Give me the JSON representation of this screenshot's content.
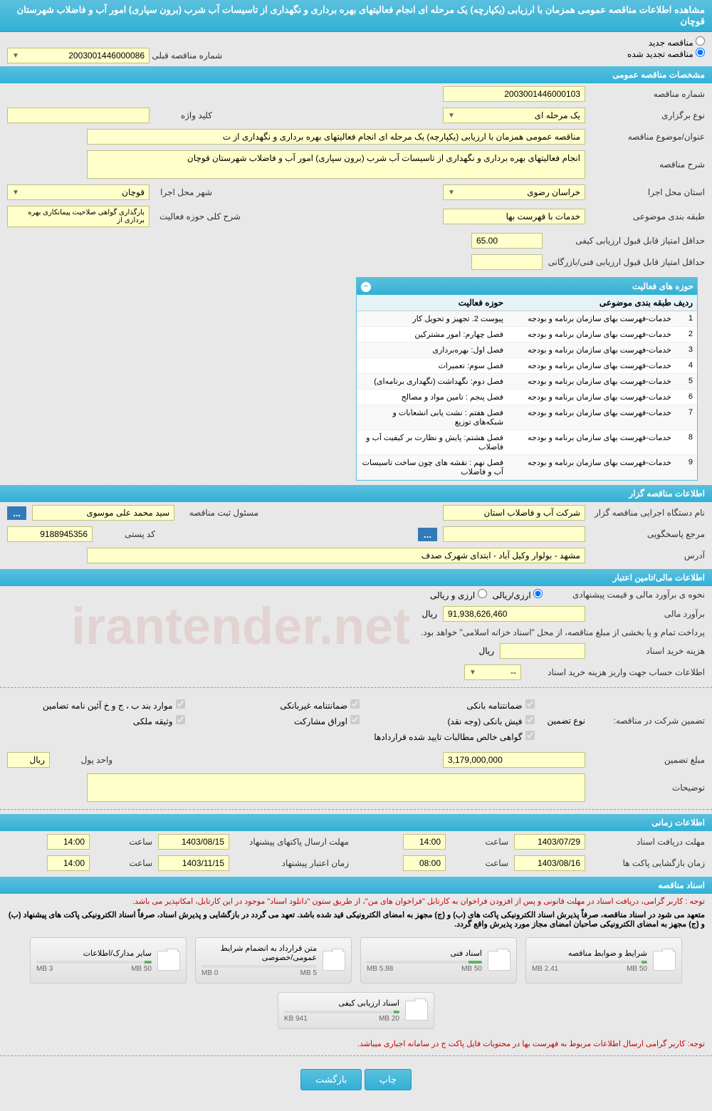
{
  "header": {
    "title": "مشاهده اطلاعات مناقصه عمومی همزمان با ارزیابی (یکپارچه) یک مرحله ای انجام فعالیتهای بهره برداری و نگهداری از تاسیسات آب شرب (برون سپاری) امور آب و فاضلاب شهرستان قوچان"
  },
  "radio": {
    "new_tender": "مناقصه جدید",
    "renewed": "مناقصه تجدید شده",
    "prev_num_label": "شماره مناقصه قبلی",
    "prev_num": "2003001446000086"
  },
  "general": {
    "section_title": "مشخصات مناقصه عمومی",
    "tender_num_label": "شماره مناقصه",
    "tender_num": "2003001446000103",
    "type_label": "نوع برگزاری",
    "type": "یک مرحله ای",
    "keyword_label": "کلید واژه",
    "keyword": "",
    "subject_label": "عنوان/موضوع مناقصه",
    "subject": "مناقصه عمومی همزمان با ارزیابی (یکپارچه) یک مرحله ای انجام فعالیتهای بهره برداری و نگهداری از ت",
    "desc_label": "شرح مناقصه",
    "desc": "انجام فعالیتهای بهره برداری و نگهداری از تاسیسات آب شرب (برون سپاری) امور آب و فاضلاب شهرستان قوچان",
    "province_label": "استان محل اجرا",
    "province": "خراسان رضوی",
    "city_label": "شهر محل اجرا",
    "city": "قوچان",
    "category_label": "طبقه بندی موضوعی",
    "category": "خدمات با فهرست بها",
    "activity_desc_label": "شرح کلی حوزه فعالیت",
    "activity_desc": "بارگذاری گواهی صلاحیت پیمانکاری بهره برداری از",
    "min_quality_label": "حداقل امتیاز قابل قبول ارزیابی کیفی",
    "min_quality": "65.00",
    "min_tech_label": "حداقل امتیاز قابل قبول ارزیابی فنی/بازرگانی",
    "min_tech": ""
  },
  "activities": {
    "title": "حوزه های فعالیت",
    "col_idx": "ردیف",
    "col_cat": "طبقه بندی موضوعی",
    "col_act": "حوزه فعالیت",
    "rows": [
      {
        "idx": "1",
        "cat": "خدمات-فهرست بهای سازمان برنامه و بودجه",
        "act": "پیوست 2. تجهیز و تحویل کار"
      },
      {
        "idx": "2",
        "cat": "خدمات-فهرست بهای سازمان برنامه و بودجه",
        "act": "فصل چهارم: امور مشترکین"
      },
      {
        "idx": "3",
        "cat": "خدمات-فهرست بهای سازمان برنامه و بودجه",
        "act": "فصل اول: بهره‌برداری"
      },
      {
        "idx": "4",
        "cat": "خدمات-فهرست بهای سازمان برنامه و بودجه",
        "act": "فصل سوم: تعمیرات"
      },
      {
        "idx": "5",
        "cat": "خدمات-فهرست بهای سازمان برنامه و بودجه",
        "act": "فصل دوم: نگهداشت (نگهداری برنامه‌ای)"
      },
      {
        "idx": "6",
        "cat": "خدمات-فهرست بهای سازمان برنامه و بودجه",
        "act": "فصل پنجم : تامین مواد و مصالح"
      },
      {
        "idx": "7",
        "cat": "خدمات-فهرست بهای سازمان برنامه و بودجه",
        "act": "فصل هفتم : نشت یابی انشعابات و شبکه‌های توزیع"
      },
      {
        "idx": "8",
        "cat": "خدمات-فهرست بهای سازمان برنامه و بودجه",
        "act": "فصل هشتم: پایش و نظارت بر کیفیت آب و فاضلاب"
      },
      {
        "idx": "9",
        "cat": "خدمات-فهرست بهای سازمان برنامه و بودجه",
        "act": "فصل نهم : نقشه های چون ساخت  تاسیسات آب و فاضلاب"
      }
    ]
  },
  "organizer": {
    "section_title": "اطلاعات مناقصه گزار",
    "org_label": "نام دستگاه اجرایی مناقصه گزار",
    "org": "شرکت آب و فاضلاب استان",
    "responsible_label": "مسئول ثبت مناقصه",
    "responsible": "سید محمد علی موسوی",
    "response_label": "مرجع پاسخگویی",
    "response": "",
    "postal_label": "کد پستی",
    "postal": "9188945356",
    "address_label": "آدرس",
    "address": "مشهد - بولوار وکیل آباد - ابتدای شهرک صدف"
  },
  "financial": {
    "section_title": "اطلاعات مالی/تامین اعتبار",
    "estimate_method_label": "نحوه ی برآورد مالی و قیمت پیشنهادی",
    "rial_currency": "ارزی/ریالی",
    "foreign_rial": "ارزی و ریالی",
    "estimate_label": "برآورد مالی",
    "estimate": "91,938,626,460",
    "currency_rial": "ریال",
    "payment_note": "پرداخت تمام و یا بخشی از مبلغ مناقصه، از محل \"اسناد خزانه اسلامی\" خواهد بود.",
    "doc_cost_label": "هزینه خرید اسناد",
    "doc_cost": "",
    "account_label": "اطلاعات حساب جهت واریز هزینه خرید اسناد",
    "account": "--",
    "guarantee_label": "تضمین شرکت در مناقصه:",
    "guarantee_type_label": "نوع تضمین",
    "guarantees": {
      "bank_guarantee": "ضمانتنامه بانکی",
      "nonbank_guarantee": "ضمانتنامه غیربانکی",
      "amendment_cases": "موارد بند ب ، ج و خ آئین نامه تضامین",
      "bank_receipt": "فیش بانکی (وجه نقد)",
      "partnership_bonds": "اوراق مشارکت",
      "property_deposit": "وثیقه ملکی",
      "net_claims": "گواهی خالص مطالبات تایید شده قراردادها"
    },
    "guarantee_amount_label": "مبلغ تضمین",
    "guarantee_amount": "3,179,000,000",
    "unit_label": "واحد پول",
    "unit": "ریال",
    "notes_label": "توضیحات",
    "notes": ""
  },
  "timing": {
    "section_title": "اطلاعات زمانی",
    "receive_deadline_label": "مهلت دریافت اسناد",
    "receive_deadline": "1403/07/29",
    "time_label": "ساعت",
    "receive_time": "14:00",
    "send_deadline_label": "مهلت ارسال پاکتهای پیشنهاد",
    "send_deadline": "1403/08/15",
    "send_time": "14:00",
    "open_label": "زمان بازگشایی پاکت ها",
    "open_date": "1403/08/16",
    "open_time": "08:00",
    "validity_label": "زمان اعتبار پیشنهاد",
    "validity_date": "1403/11/15",
    "validity_time": "14:00"
  },
  "documents": {
    "section_title": "اسناد مناقصه",
    "note1": "توجه : کاربر گرامی، دریافت اسناد در مهلت قانونی و پس از افزودن فراخوان به کارتابل \"فراخوان های من\"، از طریق ستون \"دانلود اسناد\" موجود در این کارتابل، امکانپذیر می باشد.",
    "note2": "متعهد می شود در اسناد مناقصه، صرفاً پذیرش اسناد الکترونیکی پاکت های (ب) و (ج) مجهز به امضای الکترونیکی قید شده باشد. تعهد می گردد در بازگشایی و پذیرش اسناد، صرفاً اسناد الکترونیکی پاکت های پیشنهاد (ب) و (ج) مجهز به امضای الکترونیکی صاحبان امضای مجاز مورد پذیرش واقع گردد.",
    "note3": "توجه: کاربر گرامی ارسال اطلاعات مربوط به فهرست بها در محتویات فایل پاکت ج در سامانه اجباری میباشد.",
    "items": [
      {
        "title": "شرایط و ضوابط مناقصه",
        "size": "2.41 MB",
        "max": "50 MB",
        "pct": 5
      },
      {
        "title": "اسناد فنی",
        "size": "5.88 MB",
        "max": "50 MB",
        "pct": 12
      },
      {
        "title": "متن قرارداد به انضمام شرایط عمومی/خصوصی",
        "size": "0 MB",
        "max": "5 MB",
        "pct": 0
      },
      {
        "title": "سایر مدارک/اطلاعات",
        "size": "3 MB",
        "max": "50 MB",
        "pct": 6
      },
      {
        "title": "اسناد ارزیابی کیفی",
        "size": "941 KB",
        "max": "20 MB",
        "pct": 5
      }
    ]
  },
  "buttons": {
    "print": "چاپ",
    "back": "بازگشت"
  },
  "watermark": "irantender.net"
}
